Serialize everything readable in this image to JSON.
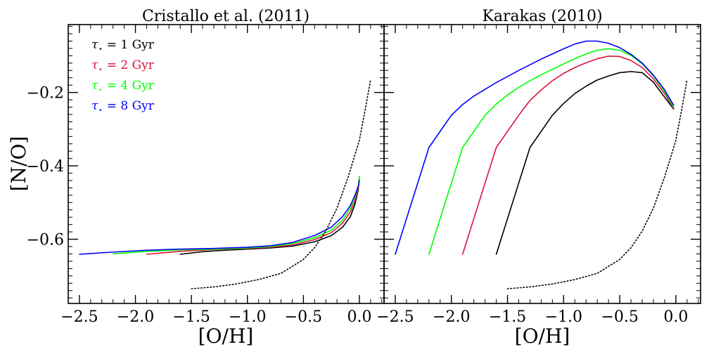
{
  "chart_data": [
    {
      "type": "line",
      "title": "Cristallo et al. (2011)",
      "xlabel": "[O/H]",
      "ylabel": "[N/O]",
      "xlim": [
        -2.6,
        0.22
      ],
      "ylim": [
        -0.775,
        -0.015
      ],
      "xticks": [
        -2.5,
        -2.0,
        -1.5,
        -1.0,
        -0.5,
        0.0
      ],
      "xtick_labels": [
        "−2.5",
        "−2.0",
        "−1.5",
        "−1.0",
        "−0.5",
        "0.0"
      ],
      "yticks": [
        -0.6,
        -0.4,
        -0.2
      ],
      "ytick_labels": [
        "−0.6",
        "−0.4",
        "−0.2"
      ],
      "legend": {
        "placement": "upper-left",
        "entries": [
          {
            "sub": "⋆",
            "text": " = 1 Gyr",
            "color": "#000000"
          },
          {
            "sub": "⋆",
            "text": " = 2 Gyr",
            "color": "#dc143c"
          },
          {
            "sub": "⋆",
            "text": " = 4 Gyr",
            "color": "#00ff00"
          },
          {
            "sub": "⋆",
            "text": " = 8 Gyr",
            "color": "#0000ff"
          }
        ]
      },
      "series": [
        {
          "name": "τ⋆ = 1 Gyr",
          "color": "#000000",
          "style": "solid",
          "x": [
            -1.6,
            -1.4,
            -1.2,
            -1.0,
            -0.8,
            -0.6,
            -0.4,
            -0.25,
            -0.15,
            -0.08,
            -0.04,
            -0.01,
            0.0
          ],
          "y": [
            -0.641,
            -0.634,
            -0.63,
            -0.627,
            -0.624,
            -0.619,
            -0.607,
            -0.59,
            -0.567,
            -0.538,
            -0.505,
            -0.465,
            -0.43
          ]
        },
        {
          "name": "τ⋆ = 2 Gyr",
          "color": "#dc143c",
          "style": "solid",
          "x": [
            -1.9,
            -1.6,
            -1.3,
            -1.0,
            -0.8,
            -0.6,
            -0.4,
            -0.25,
            -0.15,
            -0.08,
            -0.04,
            -0.01,
            0.0
          ],
          "y": [
            -0.641,
            -0.633,
            -0.628,
            -0.625,
            -0.622,
            -0.616,
            -0.601,
            -0.582,
            -0.556,
            -0.525,
            -0.495,
            -0.46,
            -0.43
          ]
        },
        {
          "name": "τ⋆ = 4 Gyr",
          "color": "#00ff00",
          "style": "solid",
          "x": [
            -2.2,
            -1.9,
            -1.6,
            -1.3,
            -1.0,
            -0.8,
            -0.6,
            -0.4,
            -0.25,
            -0.15,
            -0.08,
            -0.04,
            -0.01,
            0.0
          ],
          "y": [
            -0.64,
            -0.633,
            -0.629,
            -0.627,
            -0.624,
            -0.62,
            -0.612,
            -0.596,
            -0.575,
            -0.548,
            -0.515,
            -0.485,
            -0.455,
            -0.43
          ]
        },
        {
          "name": "τ⋆ = 8 Gyr",
          "color": "#0000ff",
          "style": "solid",
          "x": [
            -2.5,
            -2.2,
            -1.9,
            -1.6,
            -1.3,
            -1.0,
            -0.8,
            -0.6,
            -0.4,
            -0.25,
            -0.15,
            -0.08,
            -0.04,
            -0.01,
            0.0
          ],
          "y": [
            -0.641,
            -0.635,
            -0.63,
            -0.627,
            -0.625,
            -0.622,
            -0.618,
            -0.609,
            -0.59,
            -0.567,
            -0.538,
            -0.508,
            -0.48,
            -0.455,
            -0.44
          ]
        },
        {
          "name": "",
          "color": "#000000",
          "style": "dotted",
          "x": [
            -1.5,
            -1.3,
            -1.1,
            -0.9,
            -0.7,
            -0.5,
            -0.4,
            -0.3,
            -0.2,
            -0.1,
            0.0,
            0.05,
            0.1
          ],
          "y": [
            -0.735,
            -0.73,
            -0.722,
            -0.71,
            -0.693,
            -0.655,
            -0.623,
            -0.578,
            -0.515,
            -0.43,
            -0.33,
            -0.25,
            -0.165
          ]
        }
      ]
    },
    {
      "type": "line",
      "title": "Karakas (2010)",
      "xlabel": "[O/H]",
      "ylabel": "",
      "xlim": [
        -2.6,
        0.22
      ],
      "ylim": [
        -0.775,
        -0.015
      ],
      "xticks": [
        -2.5,
        -2.0,
        -1.5,
        -1.0,
        -0.5,
        0.0
      ],
      "xtick_labels": [
        "−2.5",
        "−2.0",
        "−1.5",
        "−1.0",
        "−0.5",
        "0.0"
      ],
      "yticks": [
        -0.6,
        -0.4,
        -0.2
      ],
      "ytick_labels": [],
      "series": [
        {
          "name": "τ⋆ = 1 Gyr",
          "color": "#000000",
          "style": "solid",
          "x": [
            -1.6,
            -1.3,
            -1.1,
            -1.0,
            -0.9,
            -0.8,
            -0.7,
            -0.6,
            -0.5,
            -0.4,
            -0.3,
            -0.2,
            -0.1,
            -0.02
          ],
          "y": [
            -0.641,
            -0.35,
            -0.262,
            -0.23,
            -0.203,
            -0.183,
            -0.166,
            -0.155,
            -0.146,
            -0.143,
            -0.146,
            -0.172,
            -0.213,
            -0.245
          ]
        },
        {
          "name": "τ⋆ = 2 Gyr",
          "color": "#dc143c",
          "style": "solid",
          "x": [
            -1.9,
            -1.6,
            -1.4,
            -1.3,
            -1.2,
            -1.1,
            -1.0,
            -0.9,
            -0.8,
            -0.7,
            -0.6,
            -0.5,
            -0.4,
            -0.3,
            -0.2,
            -0.1,
            -0.02
          ],
          "y": [
            -0.641,
            -0.35,
            -0.262,
            -0.222,
            -0.193,
            -0.168,
            -0.148,
            -0.132,
            -0.119,
            -0.108,
            -0.101,
            -0.102,
            -0.113,
            -0.132,
            -0.163,
            -0.203,
            -0.243
          ]
        },
        {
          "name": "τ⋆ = 4 Gyr",
          "color": "#00ff00",
          "style": "solid",
          "x": [
            -2.2,
            -1.9,
            -1.7,
            -1.6,
            -1.5,
            -1.4,
            -1.3,
            -1.2,
            -1.1,
            -1.0,
            -0.9,
            -0.8,
            -0.7,
            -0.6,
            -0.5,
            -0.4,
            -0.3,
            -0.2,
            -0.1,
            -0.02
          ],
          "y": [
            -0.641,
            -0.35,
            -0.262,
            -0.232,
            -0.207,
            -0.186,
            -0.168,
            -0.152,
            -0.137,
            -0.122,
            -0.108,
            -0.095,
            -0.085,
            -0.081,
            -0.085,
            -0.099,
            -0.122,
            -0.155,
            -0.197,
            -0.24
          ]
        },
        {
          "name": "τ⋆ = 8 Gyr",
          "color": "#0000ff",
          "style": "solid",
          "x": [
            -2.5,
            -2.2,
            -2.0,
            -1.9,
            -1.8,
            -1.6,
            -1.4,
            -1.2,
            -1.0,
            -0.9,
            -0.8,
            -0.7,
            -0.6,
            -0.5,
            -0.4,
            -0.3,
            -0.2,
            -0.1,
            -0.02
          ],
          "y": [
            -0.641,
            -0.35,
            -0.262,
            -0.233,
            -0.21,
            -0.173,
            -0.14,
            -0.109,
            -0.081,
            -0.068,
            -0.06,
            -0.06,
            -0.066,
            -0.078,
            -0.096,
            -0.12,
            -0.153,
            -0.193,
            -0.235
          ]
        },
        {
          "name": "",
          "color": "#000000",
          "style": "dotted",
          "x": [
            -1.5,
            -1.3,
            -1.1,
            -0.9,
            -0.7,
            -0.5,
            -0.4,
            -0.3,
            -0.2,
            -0.1,
            0.0,
            0.05,
            0.1
          ],
          "y": [
            -0.735,
            -0.73,
            -0.722,
            -0.71,
            -0.693,
            -0.655,
            -0.623,
            -0.578,
            -0.515,
            -0.43,
            -0.33,
            -0.25,
            -0.165
          ]
        }
      ]
    }
  ]
}
